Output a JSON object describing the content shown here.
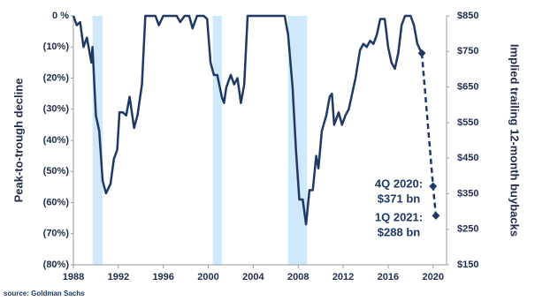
{
  "chart_data": {
    "type": "line",
    "ylabel": "Peak-to-trough decline",
    "y2label": "Implied trailing 12-month buybacks",
    "source": "source: Goldman Sachs",
    "xlim": [
      1988,
      2021.2
    ],
    "xticks": [
      1988,
      1992,
      1996,
      2000,
      2004,
      2008,
      2012,
      2016,
      2020
    ],
    "ylim": [
      -80,
      0
    ],
    "yticks": [
      {
        "value": 0,
        "label": "0 %"
      },
      {
        "value": -10,
        "label": "(10%)"
      },
      {
        "value": -20,
        "label": "(20%)"
      },
      {
        "value": -30,
        "label": "(30%)"
      },
      {
        "value": -40,
        "label": "(40%)"
      },
      {
        "value": -50,
        "label": "(50%)"
      },
      {
        "value": -60,
        "label": "(60%)"
      },
      {
        "value": -70,
        "label": "(70%)"
      },
      {
        "value": -80,
        "label": "(80%)"
      }
    ],
    "y2lim": [
      150,
      850
    ],
    "y2ticks": [
      {
        "value": 850,
        "label": "$850"
      },
      {
        "value": 750,
        "label": "$750"
      },
      {
        "value": 650,
        "label": "$650"
      },
      {
        "value": 550,
        "label": "$550"
      },
      {
        "value": 450,
        "label": "$450"
      },
      {
        "value": 350,
        "label": "$350"
      },
      {
        "value": 250,
        "label": "$250"
      },
      {
        "value": 150,
        "label": "$150"
      }
    ],
    "shaded_periods": [
      [
        1989.7,
        1990.6
      ],
      [
        2000.4,
        2001.2
      ],
      [
        2007.1,
        2008.8
      ]
    ],
    "shade_color": "#cfe8fb",
    "series": [
      {
        "color": "#1f3864",
        "x": [
          1988,
          1988.3,
          1988.6,
          1988.9,
          1989.2,
          1989.4,
          1989.6,
          1989.7,
          1990.0,
          1990.3,
          1990.6,
          1990.9,
          1991.3,
          1991.6,
          1991.9,
          1992.1,
          1992.4,
          1992.7,
          1993.0,
          1993.4,
          1993.7,
          1994.1,
          1994.4,
          1995.3,
          1995.6,
          1996.0,
          1997.2,
          1997.5,
          1997.9,
          1998.3,
          1998.6,
          1999.0,
          1999.6,
          1999.9,
          2000.2,
          2000.5,
          2000.8,
          2001.2,
          2001.4,
          2001.6,
          2002.0,
          2002.3,
          2002.6,
          2002.9,
          2003.2,
          2003.5,
          2006.8,
          2007.1,
          2007.5,
          2007.8,
          2008.1,
          2008.4,
          2008.7,
          2009.0,
          2009.3,
          2009.6,
          2009.8,
          2010.1,
          2010.5,
          2010.8,
          2011.0,
          2011.2,
          2011.6,
          2011.9,
          2012.2,
          2012.5,
          2012.8,
          2013.1,
          2013.5,
          2013.8,
          2014.1,
          2014.4,
          2014.7,
          2015.0,
          2015.3,
          2015.7,
          2016.0,
          2016.3,
          2016.6,
          2016.9,
          2017.2,
          2017.5,
          2018.0,
          2018.3,
          2018.6,
          2019.0
        ],
        "values": [
          0,
          -3,
          -2,
          -10,
          -7,
          -11,
          -15,
          -10,
          -32,
          -37,
          -53,
          -57,
          -54,
          -46,
          -43,
          -31,
          -31,
          -32,
          -26,
          -36,
          -32,
          -22,
          0,
          0,
          -3,
          0,
          0,
          -2,
          0,
          0,
          -4,
          0,
          0,
          -1,
          -15,
          -19,
          -19,
          -26,
          -28,
          -23,
          -19,
          -22,
          -20,
          -28,
          -22,
          0,
          0,
          -6,
          -23,
          -43,
          -59,
          -59,
          -67,
          -56,
          -56,
          -45,
          -49,
          -37,
          -32,
          -26,
          -25,
          -35,
          -31,
          -35,
          -32,
          -30,
          -25,
          -20,
          -11,
          -9,
          -10,
          -8,
          -9,
          -6,
          -1,
          -1,
          -10,
          -15,
          -17,
          -12,
          -3,
          0,
          0,
          -3,
          -9,
          -12
        ]
      },
      {
        "color": "#1f3864",
        "axis": "y2",
        "dashed": true,
        "marker": "diamond",
        "x": [
          2019.0,
          2020.0,
          2020.25
        ],
        "values": [
          745,
          371,
          288
        ]
      }
    ],
    "annotations": [
      {
        "lines": [
          "4Q 2020:",
          "$371 bn"
        ]
      },
      {
        "lines": [
          "1Q 2021:",
          "$288 bn"
        ]
      }
    ]
  }
}
